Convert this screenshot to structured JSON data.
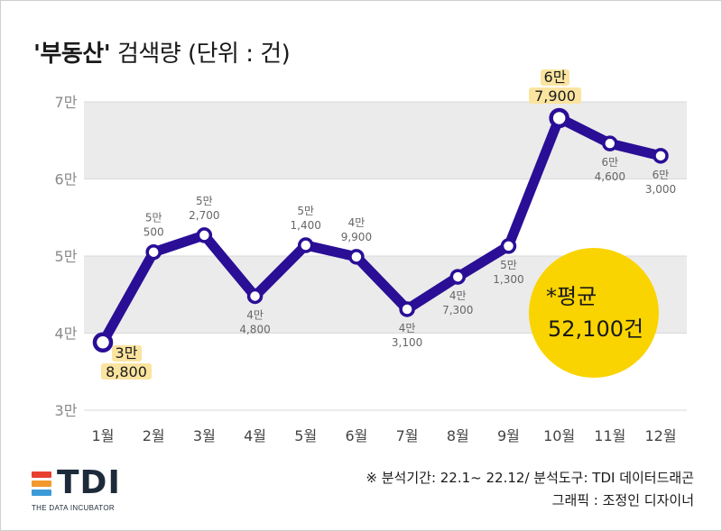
{
  "title": {
    "bold_part": "'부동산'",
    "rest_part": " 검색량 (단위 : 건)"
  },
  "chart_data": {
    "type": "line",
    "title": "'부동산' 검색량 (단위 : 건)",
    "categories": [
      "1월",
      "2월",
      "3월",
      "4월",
      "5월",
      "6월",
      "7월",
      "8월",
      "9월",
      "10월",
      "11월",
      "12월"
    ],
    "values": [
      38800,
      50500,
      52700,
      44800,
      51400,
      49900,
      43100,
      47300,
      51300,
      67900,
      64600,
      63000
    ],
    "value_labels": [
      [
        "3만",
        "8,800"
      ],
      [
        "5만",
        "500"
      ],
      [
        "5만",
        "2,700"
      ],
      [
        "4만",
        "4,800"
      ],
      [
        "5만",
        "1,400"
      ],
      [
        "4만",
        "9,900"
      ],
      [
        "4만",
        "3,100"
      ],
      [
        "4만",
        "7,300"
      ],
      [
        "5만",
        "1,300"
      ],
      [
        "6만",
        "7,900"
      ],
      [
        "6만",
        "4,600"
      ],
      [
        "6만",
        "3,000"
      ]
    ],
    "highlighted_points": [
      0,
      9
    ],
    "yticks": [
      30000,
      40000,
      50000,
      60000,
      70000
    ],
    "ytick_labels": [
      "3만",
      "4만",
      "5만",
      "6만",
      "7만"
    ],
    "ylim": [
      30000,
      70000
    ],
    "bands": [
      [
        40000,
        50000
      ],
      [
        60000,
        70000
      ]
    ],
    "average": {
      "label": "*평균",
      "value_text": "52,100건"
    },
    "colors": {
      "line": "#2a0e96",
      "marker_fill": "#ffffff",
      "band": "#ebebeb",
      "highlight": "#fbe4a0",
      "average_circle": "#fad400",
      "axis_text": "#8a8a8a",
      "value_label": "#666666"
    }
  },
  "footer": {
    "source": "※ 분석기간: 22.1~ 22.12/ 분석도구: TDI 데이터드래곤",
    "graphic": "그래픽 : 조정인 디자이너"
  },
  "logo": {
    "text": "TDI",
    "subtitle": "THE DATA INCUBATOR",
    "bar_colors": [
      "#e8402f",
      "#f29a2e",
      "#3c9ad8"
    ]
  }
}
